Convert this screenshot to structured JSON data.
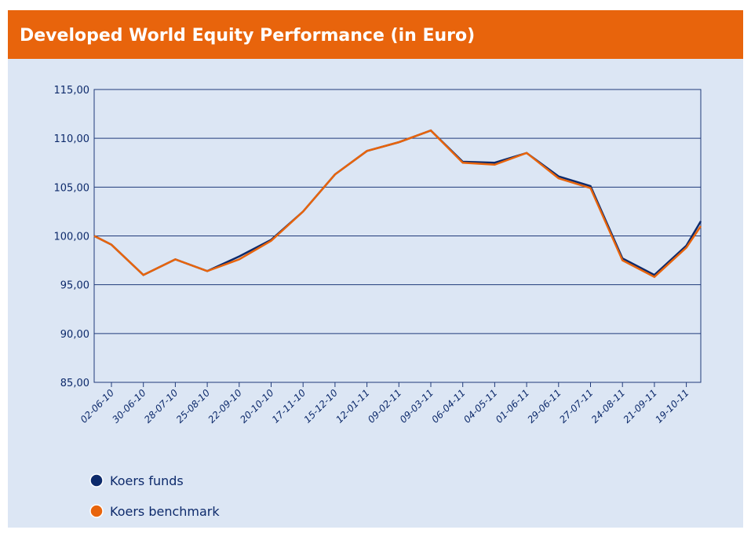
{
  "chart_data": {
    "type": "line",
    "title": "Developed World Equity Performance (in Euro)",
    "categories": [
      null,
      "02-06-10",
      "30-06-10",
      "28-07-10",
      "25-08-10",
      "22-09-10",
      "20-10-10",
      "17-11-10",
      "15-12-10",
      "12-01-11",
      "09-02-11",
      "09-03-11",
      "06-04-11",
      "04-05-11",
      "01-06-11",
      "29-06-11",
      "27-07-11",
      "24-08-11",
      "21-09-11",
      "19-10-11",
      null
    ],
    "series": [
      {
        "name": "Koers funds",
        "color": "#0d2a6b",
        "values": [
          100,
          99.1,
          96.0,
          97.6,
          96.4,
          97.9,
          99.6,
          102.5,
          106.3,
          108.7,
          109.6,
          110.8,
          107.6,
          107.5,
          108.5,
          106.1,
          105.1,
          97.7,
          96.0,
          99.0,
          101.5
        ]
      },
      {
        "name": "Koers benchmark",
        "color": "#e8640c",
        "values": [
          100,
          99.1,
          96.0,
          97.6,
          96.4,
          97.6,
          99.5,
          102.5,
          106.3,
          108.7,
          109.6,
          110.8,
          107.5,
          107.3,
          108.5,
          105.9,
          104.9,
          97.5,
          95.8,
          98.8,
          101.0
        ]
      }
    ],
    "ylim": [
      85,
      115
    ],
    "yticks": [
      {
        "value": 85,
        "label": "85,00"
      },
      {
        "value": 90,
        "label": "90,00"
      },
      {
        "value": 95,
        "label": "95,00"
      },
      {
        "value": 100,
        "label": "100,00"
      },
      {
        "value": 105,
        "label": "105,00"
      },
      {
        "value": 110,
        "label": "110,00"
      },
      {
        "value": 115,
        "label": "115,00"
      }
    ],
    "grid": true
  }
}
